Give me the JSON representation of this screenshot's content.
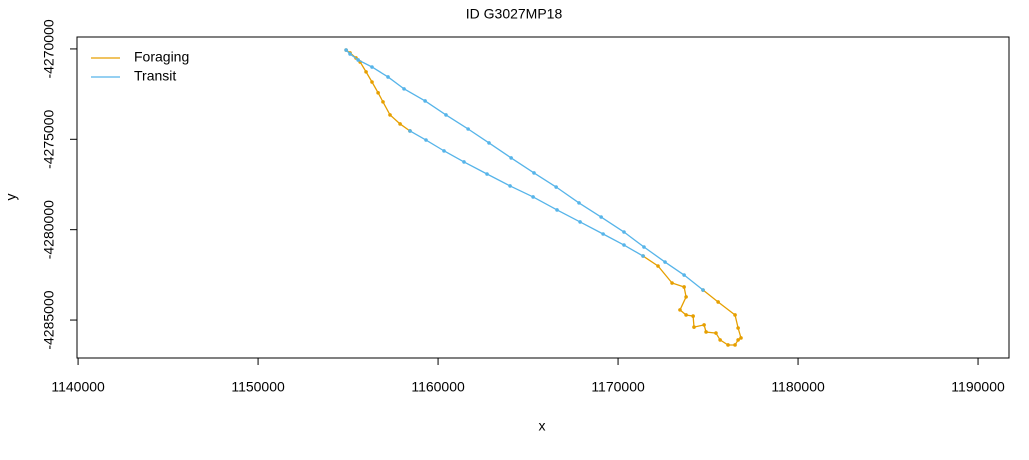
{
  "chart_data": {
    "type": "line",
    "title": "ID G3027MP18",
    "x_label": "x",
    "y_label": "y",
    "xlim": [
      1139940,
      1191720
    ],
    "ylim": [
      -4287100,
      -4269340
    ],
    "xticks": [
      1140000,
      1150000,
      1160000,
      1170000,
      1180000,
      1190000
    ],
    "yticks": [
      -4270000,
      -4275000,
      -4280000,
      -4285000
    ],
    "legend": "topleft",
    "markers": true,
    "series": [
      {
        "name": "Foraging",
        "color": "#E69F00",
        "x": [
          1154890,
          1155110,
          1155440,
          1155670,
          1156000,
          1156330,
          1156670,
          1156940,
          1157330,
          1157890,
          1158440,
          null,
          1171390,
          1172220,
          1173000,
          1173670,
          1173780,
          1173440,
          1173780,
          1174170,
          1174220,
          1174780,
          1174890,
          1175440,
          1175670,
          1176110,
          1176500,
          1176670,
          1176830,
          1176670,
          1176500,
          1175560,
          1174720
        ],
        "y": [
          -4270060,
          -4270220,
          -4270500,
          -4270720,
          -4271270,
          -4271830,
          -4272430,
          -4272930,
          -4273650,
          -4274150,
          -4274540,
          null,
          -4281460,
          -4282010,
          -4282950,
          -4283170,
          -4283720,
          -4284440,
          -4284720,
          -4284780,
          -4285390,
          -4285270,
          -4285660,
          -4285720,
          -4286100,
          -4286380,
          -4286380,
          -4286100,
          -4285990,
          -4285440,
          -4284720,
          -4284000,
          -4283340
        ]
      },
      {
        "name": "Transit",
        "color": "#56B4E9",
        "x": [
          1158440,
          1159330,
          1160330,
          1161440,
          1162720,
          1164000,
          1165280,
          1166610,
          1167890,
          1169170,
          1170330,
          1171390,
          null,
          1174720,
          1173670,
          1172610,
          1171440,
          1170330,
          1169060,
          1167830,
          1166560,
          1165330,
          1164060,
          1162830,
          1161670,
          1160440,
          1159280,
          1158110,
          1157220,
          1156330,
          1155560,
          1155110,
          1154890
        ],
        "y": [
          -4274540,
          -4275040,
          -4275640,
          -4276250,
          -4276920,
          -4277580,
          -4278190,
          -4278910,
          -4279570,
          -4280240,
          -4280850,
          -4281460,
          null,
          -4283340,
          -4282510,
          -4281790,
          -4280960,
          -4280130,
          -4279300,
          -4278520,
          -4277640,
          -4276860,
          -4276030,
          -4275200,
          -4274430,
          -4273650,
          -4272880,
          -4272210,
          -4271550,
          -4271000,
          -4270610,
          -4270280,
          -4270060
        ]
      }
    ]
  }
}
